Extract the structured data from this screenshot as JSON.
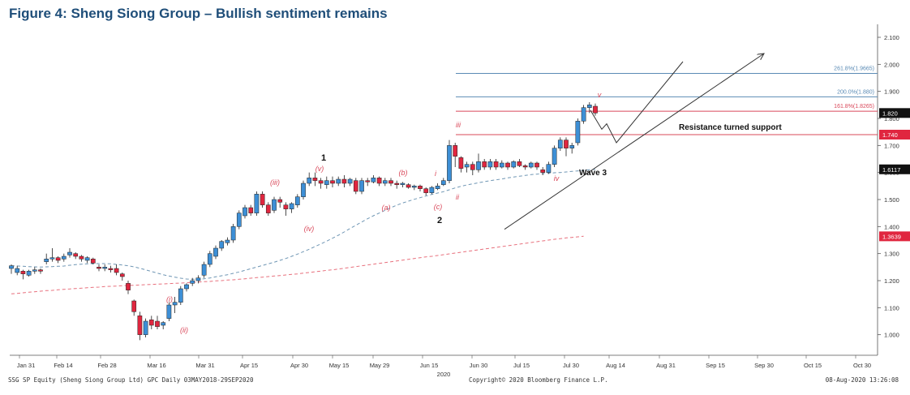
{
  "figure_title": "Figure 4: Sheng Siong Group – Bullish sentiment remains",
  "footer": {
    "left": "SSG SP Equity (Sheng Siong Group Ltd) GPC  Daily 03MAY2018-29SEP2020",
    "center": "Copyright© 2020 Bloomberg Finance L.P.",
    "right": "08-Aug-2020 13:26:08"
  },
  "colors": {
    "up": "#3d8fd6",
    "down": "#e0263f",
    "ma_short": "#6f96b4",
    "ma_long": "#e8707d",
    "fib_blue": "#5b8bb5",
    "fib_red": "#d9485a",
    "annot_red": "#d9485a",
    "axis": "#333333"
  },
  "chart_data": {
    "type": "candlestick",
    "title": "Figure 4: Sheng Siong Group – Bullish sentiment remains",
    "xlabel": "",
    "ylabel": "",
    "ylim": [
      0.93,
      2.13
    ],
    "yticks": [
      "1.000",
      "1.100",
      "1.200",
      "1.300",
      "1.400",
      "1.500",
      "1.600",
      "1.700",
      "1.800",
      "1.900",
      "2.000",
      "2.100"
    ],
    "xticks": [
      "Jan 31",
      "Feb 14",
      "Feb 28",
      "Mar 16",
      "Mar 31",
      "Apr 15",
      "Apr 30",
      "May 15",
      "May 29",
      "Jun 15",
      "Jun 30",
      "Jul 15",
      "Jul 30",
      "Aug 14",
      "Aug 31",
      "Sep 15",
      "Sep 30",
      "Oct 15",
      "Oct 30"
    ],
    "x_subtick": "2020",
    "price_tags": [
      {
        "label": "1.820",
        "value": 1.82,
        "style": "black"
      },
      {
        "label": "1.740",
        "value": 1.74,
        "style": "red"
      },
      {
        "label": "1.6117",
        "value": 1.6117,
        "style": "black"
      },
      {
        "label": "1.3639",
        "value": 1.3639,
        "style": "red"
      }
    ],
    "fib_levels": [
      {
        "label": "261.8%(1.9665)",
        "value": 1.9665,
        "color": "blue"
      },
      {
        "label": "200.0%(1.880)",
        "value": 1.88,
        "color": "blue"
      },
      {
        "label": "161.8%(1.8265)",
        "value": 1.8265,
        "color": "red"
      }
    ],
    "resistance": {
      "value": 1.74,
      "label": "Resistance turned support"
    },
    "candles": [
      [
        1.245,
        1.255,
        1.225,
        1.26
      ],
      [
        1.23,
        1.245,
        1.22,
        1.255
      ],
      [
        1.235,
        1.225,
        1.205,
        1.24
      ],
      [
        1.22,
        1.235,
        1.215,
        1.24
      ],
      [
        1.235,
        1.24,
        1.225,
        1.25
      ],
      [
        1.24,
        1.235,
        1.225,
        1.245
      ],
      [
        1.27,
        1.28,
        1.26,
        1.3
      ],
      [
        1.28,
        1.285,
        1.27,
        1.32
      ],
      [
        1.285,
        1.275,
        1.265,
        1.29
      ],
      [
        1.28,
        1.29,
        1.27,
        1.3
      ],
      [
        1.295,
        1.305,
        1.285,
        1.32
      ],
      [
        1.3,
        1.29,
        1.28,
        1.305
      ],
      [
        1.29,
        1.28,
        1.27,
        1.295
      ],
      [
        1.275,
        1.285,
        1.265,
        1.29
      ],
      [
        1.28,
        1.265,
        1.26,
        1.285
      ],
      [
        1.25,
        1.245,
        1.235,
        1.26
      ],
      [
        1.245,
        1.25,
        1.235,
        1.26
      ],
      [
        1.245,
        1.24,
        1.23,
        1.255
      ],
      [
        1.245,
        1.23,
        1.22,
        1.26
      ],
      [
        1.225,
        1.215,
        1.2,
        1.23
      ],
      [
        1.19,
        1.165,
        1.15,
        1.2
      ],
      [
        1.125,
        1.085,
        1.07,
        1.13
      ],
      [
        1.07,
        1.0,
        0.98,
        1.085
      ],
      [
        1.0,
        1.05,
        0.99,
        1.06
      ],
      [
        1.055,
        1.035,
        1.02,
        1.07
      ],
      [
        1.05,
        1.03,
        1.02,
        1.07
      ],
      [
        1.035,
        1.045,
        1.02,
        1.05
      ],
      [
        1.06,
        1.11,
        1.05,
        1.12
      ],
      [
        1.11,
        1.12,
        1.08,
        1.14
      ],
      [
        1.12,
        1.17,
        1.11,
        1.18
      ],
      [
        1.17,
        1.185,
        1.16,
        1.19
      ],
      [
        1.19,
        1.2,
        1.18,
        1.21
      ],
      [
        1.2,
        1.21,
        1.19,
        1.22
      ],
      [
        1.22,
        1.26,
        1.21,
        1.27
      ],
      [
        1.26,
        1.3,
        1.25,
        1.31
      ],
      [
        1.29,
        1.32,
        1.28,
        1.33
      ],
      [
        1.32,
        1.345,
        1.31,
        1.35
      ],
      [
        1.34,
        1.35,
        1.33,
        1.36
      ],
      [
        1.35,
        1.4,
        1.34,
        1.41
      ],
      [
        1.4,
        1.45,
        1.39,
        1.46
      ],
      [
        1.44,
        1.47,
        1.43,
        1.48
      ],
      [
        1.47,
        1.45,
        1.44,
        1.48
      ],
      [
        1.45,
        1.52,
        1.44,
        1.53
      ],
      [
        1.52,
        1.48,
        1.47,
        1.53
      ],
      [
        1.48,
        1.45,
        1.44,
        1.49
      ],
      [
        1.46,
        1.5,
        1.45,
        1.51
      ],
      [
        1.5,
        1.49,
        1.47,
        1.51
      ],
      [
        1.48,
        1.465,
        1.44,
        1.49
      ],
      [
        1.465,
        1.485,
        1.45,
        1.49
      ],
      [
        1.48,
        1.51,
        1.47,
        1.52
      ],
      [
        1.51,
        1.56,
        1.5,
        1.57
      ],
      [
        1.56,
        1.58,
        1.55,
        1.6
      ],
      [
        1.58,
        1.57,
        1.55,
        1.6
      ],
      [
        1.57,
        1.56,
        1.54,
        1.58
      ],
      [
        1.555,
        1.57,
        1.54,
        1.585
      ],
      [
        1.57,
        1.56,
        1.545,
        1.585
      ],
      [
        1.56,
        1.575,
        1.55,
        1.585
      ],
      [
        1.575,
        1.56,
        1.545,
        1.59
      ],
      [
        1.56,
        1.575,
        1.55,
        1.58
      ],
      [
        1.57,
        1.53,
        1.52,
        1.58
      ],
      [
        1.53,
        1.57,
        1.52,
        1.58
      ],
      [
        1.57,
        1.565,
        1.55,
        1.58
      ],
      [
        1.565,
        1.58,
        1.56,
        1.59
      ],
      [
        1.58,
        1.56,
        1.55,
        1.585
      ],
      [
        1.56,
        1.57,
        1.55,
        1.58
      ],
      [
        1.57,
        1.56,
        1.55,
        1.58
      ],
      [
        1.56,
        1.555,
        1.54,
        1.57
      ],
      [
        1.555,
        1.56,
        1.545,
        1.565
      ],
      [
        1.555,
        1.545,
        1.54,
        1.56
      ],
      [
        1.545,
        1.55,
        1.535,
        1.555
      ],
      [
        1.55,
        1.54,
        1.53,
        1.555
      ],
      [
        1.54,
        1.525,
        1.515,
        1.545
      ],
      [
        1.525,
        1.545,
        1.52,
        1.55
      ],
      [
        1.54,
        1.55,
        1.535,
        1.56
      ],
      [
        1.555,
        1.57,
        1.55,
        1.58
      ],
      [
        1.57,
        1.7,
        1.56,
        1.72
      ],
      [
        1.7,
        1.66,
        1.62,
        1.71
      ],
      [
        1.655,
        1.615,
        1.6,
        1.66
      ],
      [
        1.62,
        1.63,
        1.6,
        1.64
      ],
      [
        1.63,
        1.61,
        1.59,
        1.64
      ],
      [
        1.61,
        1.64,
        1.6,
        1.67
      ],
      [
        1.64,
        1.62,
        1.61,
        1.65
      ],
      [
        1.62,
        1.64,
        1.61,
        1.65
      ],
      [
        1.64,
        1.62,
        1.61,
        1.65
      ],
      [
        1.62,
        1.635,
        1.615,
        1.645
      ],
      [
        1.635,
        1.62,
        1.61,
        1.64
      ],
      [
        1.62,
        1.64,
        1.615,
        1.645
      ],
      [
        1.64,
        1.625,
        1.62,
        1.65
      ],
      [
        1.625,
        1.62,
        1.61,
        1.63
      ],
      [
        1.62,
        1.635,
        1.615,
        1.64
      ],
      [
        1.635,
        1.62,
        1.61,
        1.64
      ],
      [
        1.61,
        1.6,
        1.59,
        1.62
      ],
      [
        1.6,
        1.63,
        1.595,
        1.64
      ],
      [
        1.63,
        1.69,
        1.62,
        1.7
      ],
      [
        1.69,
        1.72,
        1.68,
        1.73
      ],
      [
        1.72,
        1.69,
        1.66,
        1.73
      ],
      [
        1.69,
        1.7,
        1.67,
        1.71
      ],
      [
        1.71,
        1.79,
        1.7,
        1.8
      ],
      [
        1.79,
        1.84,
        1.78,
        1.85
      ],
      [
        1.84,
        1.85,
        1.82,
        1.86
      ],
      [
        1.845,
        1.82,
        1.81,
        1.855
      ]
    ],
    "series": [
      {
        "type": "ma_short",
        "values": [
          1.255,
          1.254,
          1.253,
          1.252,
          1.251,
          1.25,
          1.251,
          1.252,
          1.253,
          1.254,
          1.257,
          1.259,
          1.261,
          1.262,
          1.263,
          1.263,
          1.263,
          1.262,
          1.26,
          1.258,
          1.255,
          1.251,
          1.246,
          1.24,
          1.234,
          1.228,
          1.222,
          1.217,
          1.213,
          1.209,
          1.206,
          1.205,
          1.205,
          1.207,
          1.21,
          1.214,
          1.218,
          1.222,
          1.227,
          1.232,
          1.238,
          1.244,
          1.25,
          1.256,
          1.262,
          1.268,
          1.275,
          1.282,
          1.29,
          1.298,
          1.307,
          1.316,
          1.326,
          1.336,
          1.346,
          1.357,
          1.368,
          1.38,
          1.393,
          1.405,
          1.417,
          1.429,
          1.44,
          1.45,
          1.46,
          1.47,
          1.479,
          1.487,
          1.494,
          1.501,
          1.507,
          1.513,
          1.519,
          1.524,
          1.529,
          1.536,
          1.543,
          1.549,
          1.554,
          1.558,
          1.562,
          1.566,
          1.57,
          1.573,
          1.576,
          1.58,
          1.583,
          1.586,
          1.589,
          1.592,
          1.594,
          1.596,
          1.597,
          1.599,
          1.6,
          1.602,
          1.604,
          1.606,
          1.608,
          1.61,
          1.612
        ]
      },
      {
        "type": "ma_long",
        "values": [
          1.151,
          1.153,
          1.155,
          1.157,
          1.159,
          1.161,
          1.163,
          1.164,
          1.166,
          1.168,
          1.169,
          1.171,
          1.172,
          1.174,
          1.175,
          1.176,
          1.178,
          1.179,
          1.18,
          1.181,
          1.182,
          1.183,
          1.184,
          1.185,
          1.186,
          1.187,
          1.188,
          1.189,
          1.19,
          1.191,
          1.192,
          1.194,
          1.195,
          1.196,
          1.197,
          1.199,
          1.2,
          1.202,
          1.203,
          1.205,
          1.207,
          1.209,
          1.211,
          1.213,
          1.215,
          1.217,
          1.219,
          1.221,
          1.223,
          1.225,
          1.228,
          1.23,
          1.233,
          1.235,
          1.238,
          1.24,
          1.243,
          1.246,
          1.249,
          1.252,
          1.255,
          1.258,
          1.261,
          1.264,
          1.267,
          1.27,
          1.273,
          1.276,
          1.279,
          1.282,
          1.285,
          1.288,
          1.29,
          1.293,
          1.296,
          1.299,
          1.302,
          1.305,
          1.308,
          1.311,
          1.314,
          1.317,
          1.32,
          1.323,
          1.326,
          1.329,
          1.332,
          1.335,
          1.338,
          1.341,
          1.344,
          1.347,
          1.35,
          1.353,
          1.355,
          1.358,
          1.36,
          1.362,
          1.364
        ]
      }
    ],
    "annotations": [
      {
        "label": "1",
        "style": "black"
      },
      {
        "label": "2",
        "style": "black"
      },
      {
        "label": "Wave 3",
        "style": "black"
      },
      {
        "label": "(i)",
        "style": "red"
      },
      {
        "label": "(ii)",
        "style": "red"
      },
      {
        "label": "(iii)",
        "style": "red"
      },
      {
        "label": "(iv)",
        "style": "red"
      },
      {
        "label": "(v)",
        "style": "red"
      },
      {
        "label": "(a)",
        "style": "red"
      },
      {
        "label": "(b)",
        "style": "red"
      },
      {
        "label": "(c)",
        "style": "red"
      },
      {
        "label": "i",
        "style": "red"
      },
      {
        "label": "ii",
        "style": "red"
      },
      {
        "label": "iii",
        "style": "red"
      },
      {
        "label": "iv",
        "style": "red"
      },
      {
        "label": "v",
        "style": "red"
      }
    ]
  }
}
